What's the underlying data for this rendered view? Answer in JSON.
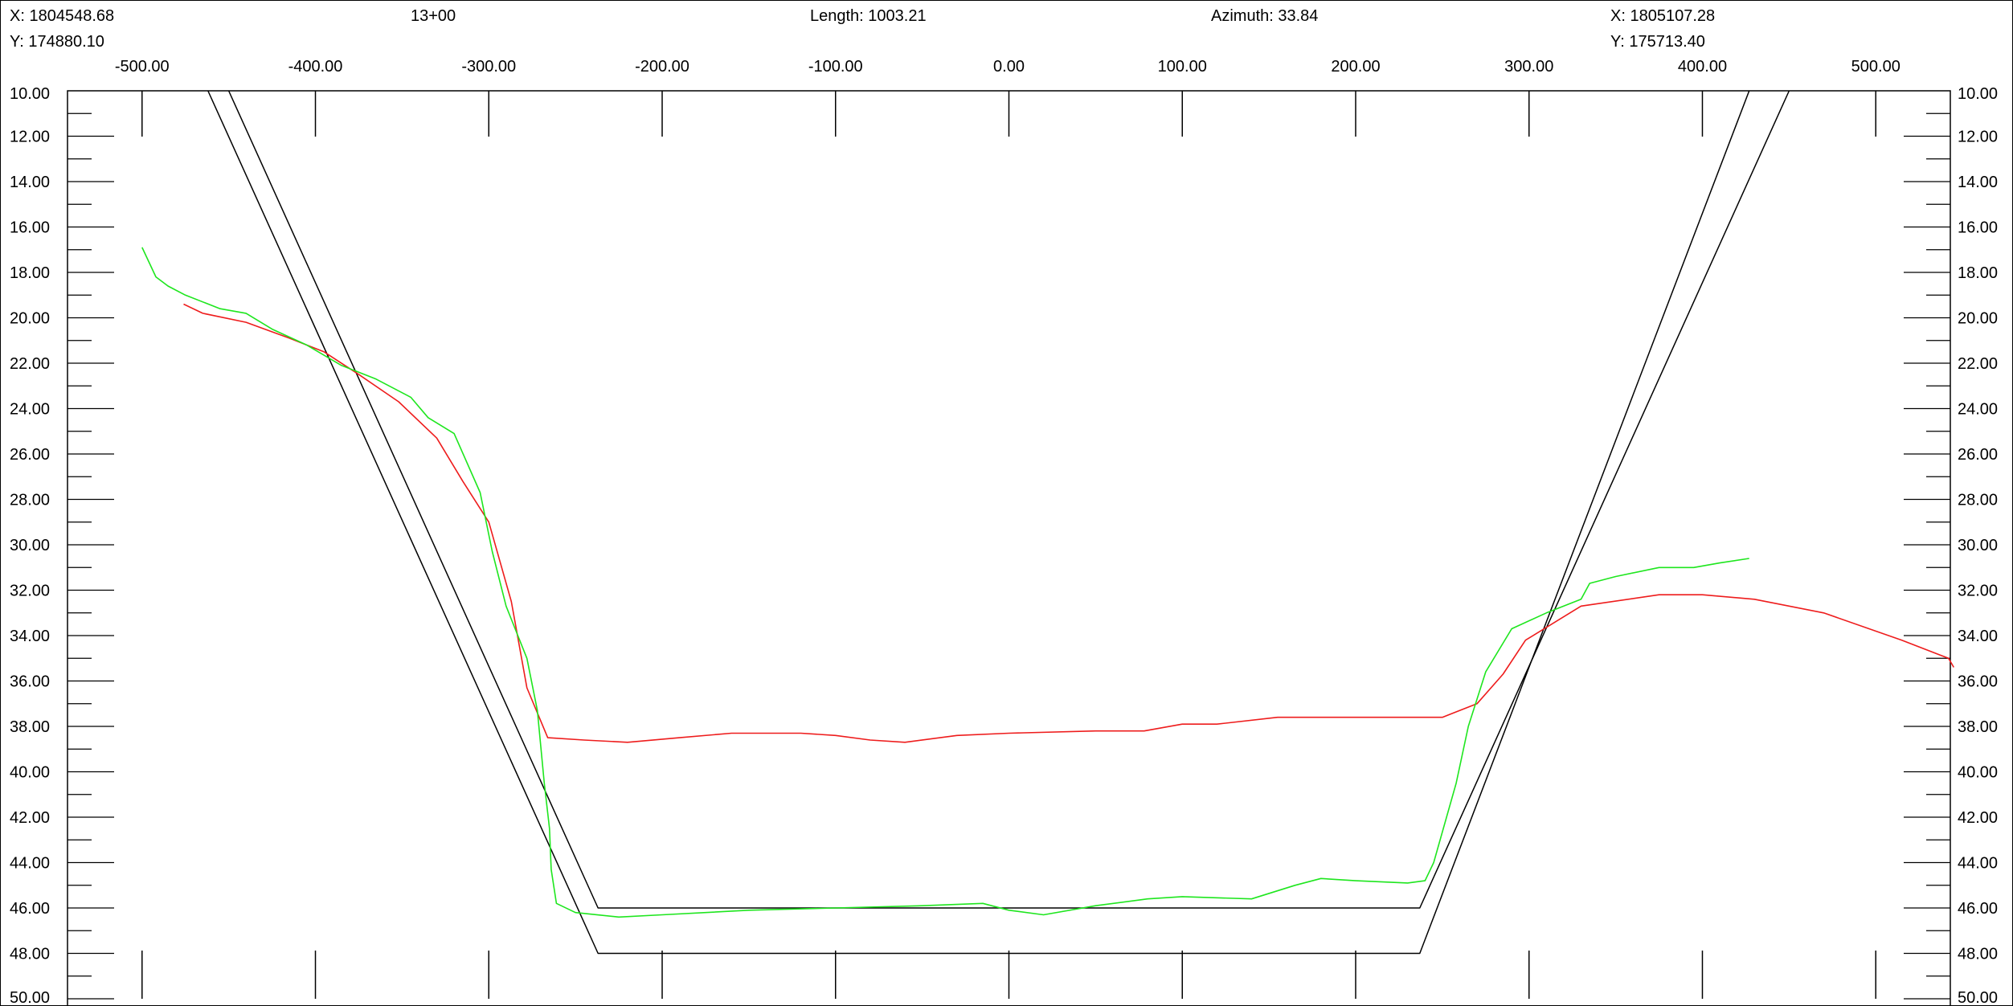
{
  "header": {
    "left_x": "X: 1804548.68",
    "left_y": "Y: 174880.10",
    "station": "13+00",
    "length": "Length: 1003.21",
    "azimuth": "Azimuth: 33.84",
    "right_x": "X: 1805107.28",
    "right_y": "Y: 175713.40"
  },
  "chart_data": {
    "type": "line",
    "title": "",
    "xlabel": "",
    "ylabel": "",
    "xlim": [
      -543,
      543
    ],
    "ylim": [
      50,
      10
    ],
    "y_inverted": true,
    "x_ticks": [
      -500,
      -400,
      -300,
      -200,
      -100,
      0,
      100,
      200,
      300,
      400,
      500
    ],
    "x_tick_labels": [
      "-500.00",
      "-400.00",
      "-300.00",
      "-200.00",
      "-100.00",
      "0.00",
      "100.00",
      "200.00",
      "300.00",
      "400.00",
      "500.00"
    ],
    "y_ticks": [
      10,
      12,
      14,
      16,
      18,
      20,
      22,
      24,
      26,
      28,
      30,
      32,
      34,
      36,
      38,
      40,
      42,
      44,
      46,
      48,
      50
    ],
    "y_tick_labels": [
      "10.00",
      "12.00",
      "14.00",
      "16.00",
      "18.00",
      "20.00",
      "22.00",
      "24.00",
      "26.00",
      "28.00",
      "30.00",
      "32.00",
      "34.00",
      "36.00",
      "38.00",
      "40.00",
      "42.00",
      "44.00",
      "46.00",
      "48.00",
      "50.00"
    ],
    "grid": false,
    "series": [
      {
        "color": "#000000",
        "points": [
          [
            -450,
            10
          ],
          [
            -237,
            46
          ],
          [
            237,
            46
          ],
          [
            450,
            10
          ]
        ]
      },
      {
        "color": "#000000",
        "points": [
          [
            -462,
            10
          ],
          [
            -237,
            48
          ],
          [
            237,
            48
          ],
          [
            427,
            10
          ]
        ]
      },
      {
        "color": "#ee1c1c",
        "points": [
          [
            -476,
            19.4
          ],
          [
            -465,
            19.8
          ],
          [
            -440,
            20.2
          ],
          [
            -415,
            20.9
          ],
          [
            -395,
            21.5
          ],
          [
            -375,
            22.5
          ],
          [
            -352,
            23.7
          ],
          [
            -330,
            25.3
          ],
          [
            -315,
            27.2
          ],
          [
            -300,
            29.0
          ],
          [
            -287,
            32.5
          ],
          [
            -278,
            36.3
          ],
          [
            -266,
            38.5
          ],
          [
            -245,
            38.6
          ],
          [
            -220,
            38.7
          ],
          [
            -190,
            38.5
          ],
          [
            -160,
            38.3
          ],
          [
            -120,
            38.3
          ],
          [
            -100,
            38.4
          ],
          [
            -80,
            38.6
          ],
          [
            -60,
            38.7
          ],
          [
            -30,
            38.4
          ],
          [
            0,
            38.3
          ],
          [
            50,
            38.2
          ],
          [
            78,
            38.2
          ],
          [
            100,
            37.9
          ],
          [
            120,
            37.9
          ],
          [
            155,
            37.6
          ],
          [
            180,
            37.6
          ],
          [
            200,
            37.6
          ],
          [
            220,
            37.6
          ],
          [
            250,
            37.6
          ],
          [
            270,
            37.0
          ],
          [
            285,
            35.7
          ],
          [
            298,
            34.2
          ],
          [
            330,
            32.7
          ],
          [
            375,
            32.2
          ],
          [
            400,
            32.2
          ],
          [
            430,
            32.4
          ],
          [
            470,
            33.0
          ],
          [
            515,
            34.2
          ],
          [
            542,
            35.0
          ],
          [
            545,
            35.4
          ]
        ]
      },
      {
        "color": "#1ee61e",
        "points": [
          [
            -500,
            16.9
          ],
          [
            -492,
            18.2
          ],
          [
            -485,
            18.6
          ],
          [
            -475,
            19.0
          ],
          [
            -455,
            19.6
          ],
          [
            -440,
            19.8
          ],
          [
            -425,
            20.5
          ],
          [
            -405,
            21.2
          ],
          [
            -385,
            22.1
          ],
          [
            -365,
            22.7
          ],
          [
            -345,
            23.5
          ],
          [
            -335,
            24.4
          ],
          [
            -320,
            25.1
          ],
          [
            -305,
            27.7
          ],
          [
            -298,
            30.3
          ],
          [
            -290,
            32.7
          ],
          [
            -278,
            35.0
          ],
          [
            -272,
            37.3
          ],
          [
            -268,
            40.5
          ],
          [
            -265,
            42.5
          ],
          [
            -264,
            44.3
          ],
          [
            -261,
            45.8
          ],
          [
            -250,
            46.2
          ],
          [
            -225,
            46.4
          ],
          [
            -200,
            46.3
          ],
          [
            -150,
            46.1
          ],
          [
            -100,
            46.0
          ],
          [
            -50,
            45.9
          ],
          [
            -15,
            45.8
          ],
          [
            0,
            46.1
          ],
          [
            20,
            46.3
          ],
          [
            50,
            45.9
          ],
          [
            80,
            45.6
          ],
          [
            100,
            45.5
          ],
          [
            140,
            45.6
          ],
          [
            165,
            45.0
          ],
          [
            180,
            44.7
          ],
          [
            200,
            44.8
          ],
          [
            230,
            44.9
          ],
          [
            240,
            44.8
          ],
          [
            245,
            44.0
          ],
          [
            258,
            40.5
          ],
          [
            265,
            38.0
          ],
          [
            275,
            35.6
          ],
          [
            290,
            33.7
          ],
          [
            310,
            33.0
          ],
          [
            320,
            32.7
          ],
          [
            330,
            32.4
          ],
          [
            335,
            31.7
          ],
          [
            350,
            31.4
          ],
          [
            375,
            31.0
          ],
          [
            395,
            31.0
          ],
          [
            410,
            30.8
          ],
          [
            427,
            30.6
          ]
        ]
      }
    ]
  }
}
